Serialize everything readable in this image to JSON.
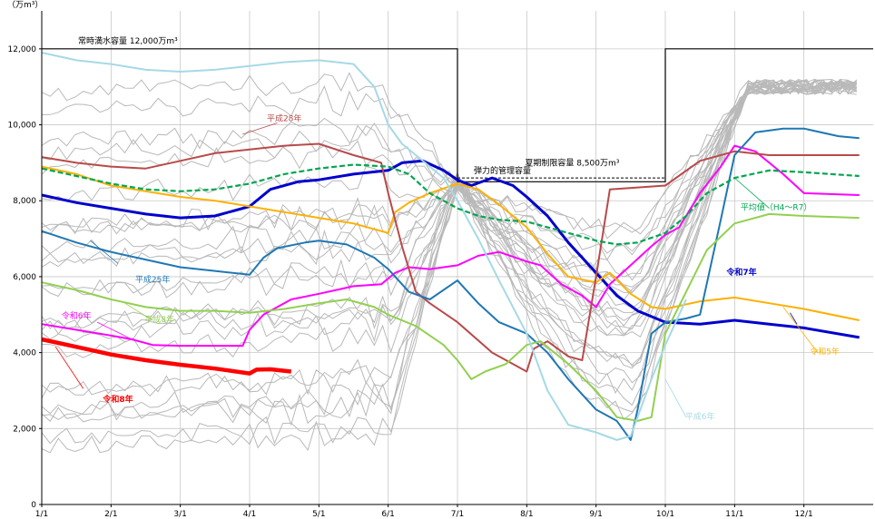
{
  "chart_data": {
    "type": "line",
    "y_unit_label": "（万m³）",
    "ylim": [
      0,
      13000
    ],
    "y_ticks": [
      0,
      2000,
      4000,
      6000,
      8000,
      10000,
      12000
    ],
    "y_tick_labels": [
      "0",
      "2,000",
      "4,000",
      "6,000",
      "8,000",
      "10,000",
      "12,000"
    ],
    "xlim_month": [
      1,
      13
    ],
    "x_tick_labels": [
      "1/1",
      "2/1",
      "3/1",
      "4/1",
      "5/1",
      "6/1",
      "7/1",
      "8/1",
      "9/1",
      "10/1",
      "11/1",
      "12/1"
    ],
    "grid": true,
    "capacity_line": {
      "label_normal": "常時満水容量 12,000万m³",
      "label_summer": "夏期制限容量 8,500万m³",
      "label_flex": "弾力的管理容量",
      "normal_value": 12000,
      "summer_value": 8500,
      "flex_value": 8600,
      "summer_start": "7/1",
      "summer_end": "10/1"
    },
    "series": [
      {
        "name": "令和8年",
        "color": "#ff0000",
        "width": 4.5,
        "x": [
          1,
          1.5,
          2,
          2.5,
          3,
          3.5,
          4,
          4.1,
          4.3,
          4.6
        ],
        "y": [
          4350,
          4150,
          3950,
          3800,
          3680,
          3580,
          3450,
          3550,
          3560,
          3500
        ]
      },
      {
        "name": "令和7年",
        "color": "#0000cc",
        "width": 3,
        "x": [
          1,
          1.5,
          2,
          2.5,
          3,
          3.5,
          4,
          4.3,
          4.7,
          5,
          5.5,
          6,
          6.2,
          6.5,
          6.8,
          7,
          7.2,
          7.5,
          7.8,
          8,
          8.3,
          8.6,
          9,
          9.3,
          9.6,
          10,
          10.5,
          11,
          11.5,
          12,
          12.8
        ],
        "y": [
          8150,
          7950,
          7800,
          7650,
          7550,
          7600,
          7850,
          8300,
          8500,
          8550,
          8700,
          8800,
          9000,
          9050,
          8800,
          8550,
          8400,
          8600,
          8400,
          8100,
          7600,
          6900,
          6100,
          5500,
          5100,
          4800,
          4750,
          4850,
          4750,
          4650,
          4400
        ]
      },
      {
        "name": "令和6年",
        "color": "#ff00ff",
        "width": 2,
        "x": [
          1,
          1.5,
          2,
          2.3,
          2.6,
          3,
          3.5,
          3.9,
          4,
          4.2,
          4.6,
          5,
          5.5,
          5.9,
          6.1,
          6.3,
          6.6,
          7,
          7.3,
          7.6,
          8,
          8.2,
          8.5,
          8.8,
          9,
          9.2,
          9.5,
          9.8,
          10,
          10.2,
          10.5,
          10.8,
          11,
          11.3,
          11.7,
          12,
          12.8
        ],
        "y": [
          4750,
          4600,
          4450,
          4350,
          4200,
          4180,
          4180,
          4180,
          4600,
          5000,
          5400,
          5550,
          5750,
          5800,
          6100,
          6250,
          6200,
          6300,
          6550,
          6650,
          6400,
          6300,
          5800,
          5500,
          5200,
          5800,
          6300,
          6800,
          7100,
          7300,
          8200,
          8900,
          9450,
          9300,
          8700,
          8200,
          8150
        ]
      },
      {
        "name": "令和5年",
        "color": "#ffb000",
        "width": 2,
        "x": [
          1,
          1.5,
          2,
          2.5,
          3,
          3.5,
          4,
          4.5,
          5,
          5.5,
          6,
          6.1,
          6.3,
          6.6,
          7,
          7.3,
          7.6,
          8,
          8.3,
          8.6,
          9,
          9.2,
          9.5,
          9.8,
          10,
          10.5,
          11,
          11.5,
          12,
          12.8
        ],
        "y": [
          8900,
          8700,
          8400,
          8250,
          8100,
          8000,
          7850,
          7700,
          7550,
          7400,
          7150,
          7700,
          7950,
          8200,
          8450,
          8300,
          7900,
          7300,
          6600,
          6000,
          5850,
          6100,
          5550,
          5200,
          5150,
          5350,
          5450,
          5300,
          5150,
          4850
        ]
      },
      {
        "name": "平成28年",
        "color": "#b84a4a",
        "width": 2,
        "x": [
          1,
          1.5,
          2,
          2.5,
          3,
          3.5,
          4,
          4.5,
          5,
          5.5,
          5.9,
          6,
          6.2,
          6.4,
          6.6,
          7,
          7.5,
          8,
          8.1,
          8.3,
          8.6,
          8.8,
          9,
          9.2,
          9.6,
          10,
          10.5,
          11,
          11.5,
          12,
          12.8
        ],
        "y": [
          9150,
          9000,
          8900,
          8850,
          9050,
          9250,
          9350,
          9450,
          9500,
          9200,
          9000,
          8200,
          6800,
          5600,
          5300,
          4800,
          4000,
          3500,
          4100,
          4300,
          3900,
          3800,
          6000,
          8300,
          8350,
          8400,
          9050,
          9300,
          9200,
          9200,
          9200
        ]
      },
      {
        "name": "平成25年",
        "color": "#1f77b4",
        "width": 2,
        "x": [
          1,
          1.5,
          2,
          2.5,
          3,
          3.5,
          4,
          4.2,
          4.4,
          4.8,
          5,
          5.4,
          5.8,
          6,
          6.3,
          6.6,
          7,
          7.3,
          7.6,
          8,
          8.3,
          8.6,
          9,
          9.3,
          9.5,
          9.6,
          9.8,
          10,
          10.3,
          10.5,
          10.8,
          11,
          11.3,
          11.7,
          12,
          12.5,
          12.8
        ],
        "y": [
          7200,
          6900,
          6650,
          6450,
          6250,
          6150,
          6050,
          6500,
          6750,
          6900,
          6950,
          6850,
          6500,
          6200,
          5600,
          5400,
          5900,
          5300,
          4800,
          4500,
          4000,
          3300,
          2500,
          2200,
          1700,
          2500,
          4500,
          4800,
          4900,
          5000,
          7500,
          9200,
          9800,
          9900,
          9900,
          9700,
          9650
        ]
      },
      {
        "name": "平成8年",
        "color": "#92d050",
        "width": 2,
        "x": [
          1,
          1.5,
          2,
          2.5,
          3,
          3.5,
          4,
          4.5,
          5,
          5.4,
          5.8,
          6,
          6.4,
          6.8,
          7,
          7.2,
          7.4,
          7.7,
          8,
          8.2,
          8.6,
          9,
          9.3,
          9.6,
          9.8,
          10,
          10.3,
          10.6,
          11,
          11.5,
          12,
          12.8
        ],
        "y": [
          5850,
          5650,
          5400,
          5200,
          5100,
          5100,
          5050,
          5150,
          5300,
          5400,
          5200,
          5000,
          4700,
          4200,
          3800,
          3300,
          3500,
          3700,
          4200,
          4300,
          3700,
          3000,
          2300,
          2200,
          2300,
          4500,
          5600,
          6700,
          7400,
          7650,
          7600,
          7550
        ]
      },
      {
        "name": "平成6年",
        "color": "#a6d9e6",
        "width": 2,
        "x": [
          1,
          1.5,
          2,
          2.5,
          3,
          3.5,
          4,
          4.5,
          5,
          5.5,
          5.8,
          6,
          6.2,
          6.4,
          6.6,
          6.8,
          7,
          7.3,
          7.6,
          8,
          8.3,
          8.6,
          9,
          9.3,
          9.5,
          9.8,
          10,
          10.3
        ],
        "y": [
          11900,
          11700,
          11600,
          11450,
          11400,
          11450,
          11550,
          11650,
          11700,
          11600,
          11000,
          10000,
          9500,
          9200,
          8900,
          8600,
          8000,
          7000,
          5900,
          4500,
          3000,
          2100,
          1900,
          1700,
          1800,
          3300,
          4200,
          5400
        ]
      },
      {
        "name": "平均値（H4～R7）",
        "color": "#00a651",
        "width": 2.2,
        "dash": true,
        "x": [
          1,
          1.5,
          2,
          2.5,
          3,
          3.5,
          4,
          4.5,
          5,
          5.5,
          6,
          6.3,
          6.6,
          7,
          7.3,
          7.6,
          8,
          8.5,
          9,
          9.3,
          9.6,
          10,
          10.3,
          10.6,
          11,
          11.5,
          12,
          12.8
        ],
        "y": [
          8850,
          8650,
          8450,
          8300,
          8250,
          8300,
          8450,
          8700,
          8850,
          8950,
          8900,
          8700,
          8200,
          7800,
          7600,
          7500,
          7450,
          7200,
          6950,
          6850,
          6900,
          7150,
          7600,
          8200,
          8600,
          8800,
          8750,
          8650
        ]
      }
    ],
    "background_note": "",
    "annotations": [
      {
        "series": "令和8年",
        "text": "令和8年",
        "color": "#ff0000",
        "bold": true,
        "pos_month": 2.1,
        "pos_y": 2700,
        "lead_from": [
          1.6,
          3050
        ],
        "lead_to": [
          1.2,
          4150
        ]
      },
      {
        "series": "令和7年",
        "text": "令和7年",
        "color": "#0000cc",
        "bold": true,
        "pos_month": 11.1,
        "pos_y": 6050,
        "lead_from": [
          11.8,
          5050
        ],
        "lead_to": [
          11.9,
          4750
        ]
      },
      {
        "series": "令和6年",
        "text": "令和6年",
        "color": "#ff00ff",
        "bold": false,
        "pos_month": 1.5,
        "pos_y": 4900,
        "lead_from": [
          1.8,
          4800
        ],
        "lead_to": [
          2.3,
          4350
        ]
      },
      {
        "series": "令和5年",
        "text": "令和5年",
        "color": "#ffb000",
        "bold": false,
        "pos_month": 12.3,
        "pos_y": 3950,
        "lead_from": [
          12.2,
          4000
        ],
        "lead_to": [
          11.7,
          5200
        ]
      },
      {
        "series": "平成28年",
        "text": "平成28年",
        "color": "#b84a4a",
        "bold": false,
        "pos_month": 4.5,
        "pos_y": 10100,
        "lead_from": [
          4.4,
          10050
        ],
        "lead_to": [
          3.9,
          9750
        ]
      },
      {
        "series": "平成25年",
        "text": "平成25年",
        "color": "#1f77b4",
        "bold": false,
        "pos_month": 2.6,
        "pos_y": 5850,
        "lead_from": [
          2.1,
          6350
        ],
        "lead_to": [
          1.7,
          6950
        ]
      },
      {
        "series": "平成8年",
        "text": "平成8年",
        "color": "#92d050",
        "bold": false,
        "pos_month": 2.7,
        "pos_y": 4800,
        "lead_from": [
          2.6,
          4850
        ],
        "lead_to": [
          2.2,
          5300
        ]
      },
      {
        "series": "平成6年",
        "text": "平成6年",
        "color": "#a6d9e6",
        "bold": false,
        "pos_month": 10.5,
        "pos_y": 2250,
        "lead_from": [
          10.3,
          2300
        ],
        "lead_to": [
          10.0,
          3300
        ]
      },
      {
        "series": "平均値（H4～R7）",
        "text": "平均値（H4～R7）",
        "color": "#00a651",
        "bold": false,
        "pos_month": 11.6,
        "pos_y": 7750,
        "lead_from": [
          11.5,
          7800
        ],
        "lead_to": [
          11.0,
          8600
        ]
      }
    ]
  }
}
